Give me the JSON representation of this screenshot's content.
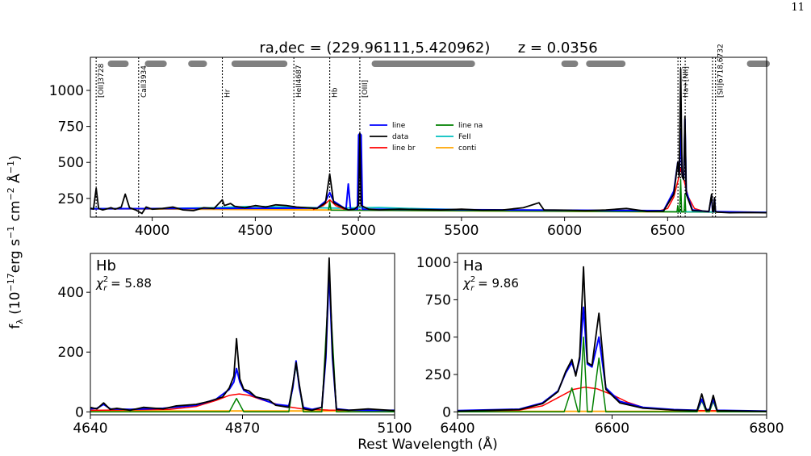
{
  "page": {
    "number": "11"
  },
  "figure": {
    "ylabel": "f_λ (10^-17 erg s^-1 cm^-2 Å^-1)",
    "xlabel": "Rest Wavelength (Å)"
  },
  "chart_data": [
    {
      "type": "line",
      "panel": "full",
      "title": "ra,dec = (229.96111,5.420962)      z = 0.0356",
      "xlim": [
        3700,
        6980
      ],
      "ylim": [
        120,
        1230
      ],
      "xticks": [
        4000,
        4500,
        5000,
        5500,
        6000,
        6500
      ],
      "yticks": [
        250,
        500,
        750,
        1000
      ],
      "line_markers": [
        {
          "x": 3728,
          "label": "[OII]3728"
        },
        {
          "x": 3934,
          "label": "CaII3934"
        },
        {
          "x": 4340,
          "label": "Hr"
        },
        {
          "x": 4687,
          "label": "HeII4687"
        },
        {
          "x": 4861,
          "label": "Hb"
        },
        {
          "x": 5007,
          "label": "[OIII]"
        },
        {
          "x": 6550,
          "label": ""
        },
        {
          "x": 6563,
          "label": "Ha+[NII]"
        },
        {
          "x": 6585,
          "label": ""
        },
        {
          "x": 6718,
          "label": ""
        },
        {
          "x": 6732,
          "label": "[SII]6718,6732"
        }
      ],
      "fit_windows": [
        [
          3800,
          3870
        ],
        [
          3980,
          4055
        ],
        [
          4190,
          4250
        ],
        [
          4400,
          4640
        ],
        [
          5080,
          5550
        ],
        [
          6000,
          6050
        ],
        [
          6120,
          6280
        ],
        [
          6900,
          6980
        ]
      ],
      "legend": [
        {
          "name": "line",
          "color": "#0000ff"
        },
        {
          "name": "data",
          "color": "#000000"
        },
        {
          "name": "line br",
          "color": "#ff0000"
        },
        {
          "name": "line na",
          "color": "#008000"
        },
        {
          "name": "FeII",
          "color": "#00bfbf"
        },
        {
          "name": "conti",
          "color": "#ffa500"
        }
      ],
      "legend_position": "center",
      "series": [
        {
          "name": "conti",
          "color": "#ffa500",
          "x": [
            3700,
            4000,
            4500,
            5000,
            5500,
            6000,
            6500,
            6980
          ],
          "y": [
            178,
            176,
            172,
            168,
            164,
            160,
            156,
            152
          ]
        },
        {
          "name": "FeII",
          "color": "#00bfbf",
          "x": [
            3700,
            4000,
            4300,
            4500,
            4700,
            4900,
            5100,
            5300,
            5500,
            5700,
            6000,
            6500,
            6980
          ],
          "y": [
            180,
            179,
            185,
            195,
            188,
            182,
            186,
            178,
            172,
            168,
            163,
            157,
            153
          ]
        },
        {
          "name": "line br",
          "color": "#ff0000",
          "x": [
            4780,
            4830,
            4861,
            4890,
            4940,
            6450,
            6500,
            6530,
            6555,
            6563,
            6575,
            6600,
            6630,
            6680
          ],
          "y": [
            172,
            200,
            240,
            200,
            170,
            160,
            180,
            260,
            400,
            460,
            400,
            260,
            180,
            158
          ]
        },
        {
          "name": "line na",
          "color": "#008000",
          "x": [
            4855,
            4861,
            4867,
            6545,
            6549,
            6553,
            6558,
            6563,
            6568,
            6580,
            6584,
            6588
          ],
          "y": [
            168,
            230,
            168,
            157,
            200,
            157,
            157,
            380,
            157,
            157,
            280,
            157
          ]
        },
        {
          "name": "line",
          "color": "#0000ff",
          "x": [
            3700,
            4800,
            4840,
            4861,
            4880,
            4940,
            4951,
            4962,
            4995,
            5001,
            5007,
            5013,
            5020,
            6480,
            6530,
            6549,
            6556,
            6563,
            6570,
            6578,
            6584,
            6590,
            6620,
            6700,
            6713,
            6718,
            6723,
            6727,
            6732,
            6737,
            6980
          ],
          "y": [
            178,
            182,
            230,
            290,
            230,
            175,
            350,
            175,
            175,
            690,
            700,
            690,
            175,
            165,
            300,
            500,
            420,
            720,
            420,
            400,
            800,
            300,
            170,
            158,
            270,
            158,
            158,
            250,
            158,
            158,
            152
          ]
        },
        {
          "name": "data",
          "color": "#000000",
          "x": [
            3700,
            3715,
            3728,
            3740,
            3760,
            3800,
            3820,
            3850,
            3869,
            3890,
            3920,
            3950,
            3970,
            4000,
            4050,
            4100,
            4150,
            4200,
            4250,
            4300,
            4340,
            4350,
            4380,
            4400,
            4450,
            4500,
            4550,
            4600,
            4650,
            4700,
            4750,
            4800,
            4840,
            4861,
            4880,
            4920,
            4951,
            4980,
            5001,
            5007,
            5013,
            5050,
            5100,
            5200,
            5300,
            5400,
            5500,
            5600,
            5700,
            5800,
            5876,
            5900,
            6000,
            6100,
            6200,
            6300,
            6400,
            6480,
            6530,
            6549,
            6556,
            6563,
            6570,
            6578,
            6584,
            6590,
            6620,
            6700,
            6713,
            6718,
            6723,
            6727,
            6732,
            6737,
            6800,
            6900,
            6980
          ],
          "y": [
            182,
            175,
            320,
            180,
            170,
            185,
            175,
            190,
            280,
            185,
            170,
            145,
            190,
            175,
            180,
            190,
            170,
            165,
            185,
            180,
            240,
            200,
            215,
            195,
            185,
            200,
            190,
            205,
            200,
            190,
            185,
            180,
            220,
            420,
            220,
            190,
            170,
            175,
            200,
            700,
            200,
            175,
            170,
            175,
            172,
            170,
            175,
            168,
            170,
            185,
            220,
            170,
            168,
            165,
            170,
            180,
            160,
            162,
            280,
            500,
            400,
            1150,
            400,
            380,
            820,
            280,
            165,
            160,
            280,
            160,
            158,
            255,
            158,
            155,
            150,
            152,
            150
          ]
        }
      ]
    },
    {
      "type": "line",
      "panel": "Hb",
      "label": "Hb",
      "chi2_label": "χ",
      "chi2_sub": "r",
      "chi2_sup": "2",
      "chi2_value": " = 5.88",
      "xlim": [
        4640,
        5100
      ],
      "ylim": [
        -10,
        530
      ],
      "xticks": [
        4640,
        4870,
        5100
      ],
      "yticks": [
        0,
        200,
        400
      ],
      "series": [
        {
          "name": "line na",
          "color": "#008000",
          "x": [
            4640,
            4850,
            4861,
            4872,
            4940,
            4951,
            4962,
            4990,
            5001,
            5012,
            5100
          ],
          "y": [
            0,
            0,
            45,
            0,
            0,
            155,
            0,
            0,
            450,
            0,
            0
          ]
        },
        {
          "name": "conti",
          "color": "#ffa500",
          "x": [
            4640,
            5100
          ],
          "y": [
            3,
            3
          ]
        },
        {
          "name": "line br",
          "color": "#ff0000",
          "x": [
            4640,
            4760,
            4800,
            4830,
            4850,
            4865,
            4880,
            4900,
            4930,
            4960,
            5000,
            5100
          ],
          "y": [
            5,
            8,
            18,
            38,
            55,
            60,
            55,
            40,
            20,
            10,
            6,
            5
          ]
        },
        {
          "name": "line",
          "color": "#0000ff",
          "x": [
            4640,
            4650,
            4660,
            4670,
            4700,
            4750,
            4800,
            4830,
            4850,
            4857,
            4861,
            4866,
            4872,
            4890,
            4920,
            4940,
            4946,
            4951,
            4956,
            4962,
            4975,
            4990,
            4996,
            5001,
            5006,
            5012,
            5030,
            5060,
            5100
          ],
          "y": [
            10,
            12,
            25,
            10,
            8,
            12,
            22,
            42,
            75,
            100,
            145,
            100,
            72,
            50,
            25,
            20,
            80,
            170,
            80,
            15,
            8,
            15,
            180,
            470,
            180,
            10,
            6,
            5,
            5
          ]
        },
        {
          "name": "data",
          "color": "#000000",
          "x": [
            4640,
            4650,
            4660,
            4670,
            4680,
            4700,
            4720,
            4750,
            4770,
            4800,
            4820,
            4840,
            4850,
            4857,
            4861,
            4866,
            4872,
            4880,
            4890,
            4910,
            4920,
            4940,
            4946,
            4951,
            4956,
            4962,
            4975,
            4990,
            4996,
            5001,
            5006,
            5012,
            5030,
            5060,
            5100
          ],
          "y": [
            15,
            10,
            30,
            8,
            12,
            5,
            15,
            10,
            20,
            25,
            35,
            50,
            80,
            120,
            245,
            110,
            75,
            70,
            50,
            40,
            22,
            15,
            90,
            165,
            90,
            10,
            5,
            15,
            200,
            515,
            200,
            8,
            5,
            10,
            4
          ]
        }
      ]
    },
    {
      "type": "line",
      "panel": "Ha",
      "label": "Ha",
      "chi2_label": "χ",
      "chi2_sub": "r",
      "chi2_sup": "2",
      "chi2_value": " = 9.86",
      "xlim": [
        6400,
        6800
      ],
      "ylim": [
        -20,
        1060
      ],
      "xticks": [
        6400,
        6600,
        6800
      ],
      "yticks": [
        0,
        250,
        500,
        750,
        1000
      ],
      "series": [
        {
          "name": "line na",
          "color": "#008000",
          "x": [
            6400,
            6538,
            6548,
            6556,
            6558,
            6563,
            6568,
            6574,
            6583,
            6592,
            6700,
            6710,
            6716,
            6722,
            6726,
            6731,
            6736,
            6800
          ],
          "y": [
            0,
            0,
            160,
            0,
            0,
            500,
            0,
            0,
            360,
            0,
            0,
            0,
            75,
            0,
            0,
            70,
            0,
            0
          ]
        },
        {
          "name": "conti",
          "color": "#ffa500",
          "x": [
            6400,
            6800
          ],
          "y": [
            4,
            4
          ]
        },
        {
          "name": "line br",
          "color": "#ff0000",
          "x": [
            6400,
            6480,
            6510,
            6530,
            6550,
            6565,
            6580,
            6600,
            6620,
            6640,
            6680,
            6800
          ],
          "y": [
            5,
            12,
            40,
            95,
            150,
            165,
            155,
            115,
            65,
            30,
            10,
            5
          ]
        },
        {
          "name": "line",
          "color": "#0000ff",
          "x": [
            6400,
            6480,
            6510,
            6530,
            6540,
            6548,
            6553,
            6558,
            6563,
            6568,
            6574,
            6583,
            6592,
            6610,
            6640,
            6680,
            6710,
            6716,
            6722,
            6726,
            6731,
            6736,
            6800
          ],
          "y": [
            8,
            18,
            60,
            140,
            260,
            330,
            250,
            350,
            700,
            320,
            300,
            500,
            160,
            70,
            30,
            15,
            10,
            85,
            15,
            15,
            85,
            10,
            5
          ]
        },
        {
          "name": "data",
          "color": "#000000",
          "x": [
            6400,
            6480,
            6510,
            6530,
            6540,
            6548,
            6553,
            6558,
            6563,
            6568,
            6574,
            6583,
            6592,
            6610,
            6640,
            6680,
            6710,
            6716,
            6722,
            6726,
            6731,
            6736,
            6800
          ],
          "y": [
            5,
            15,
            55,
            135,
            270,
            350,
            240,
            370,
            970,
            330,
            310,
            660,
            150,
            60,
            25,
            12,
            8,
            120,
            10,
            12,
            110,
            8,
            4
          ]
        }
      ]
    }
  ]
}
